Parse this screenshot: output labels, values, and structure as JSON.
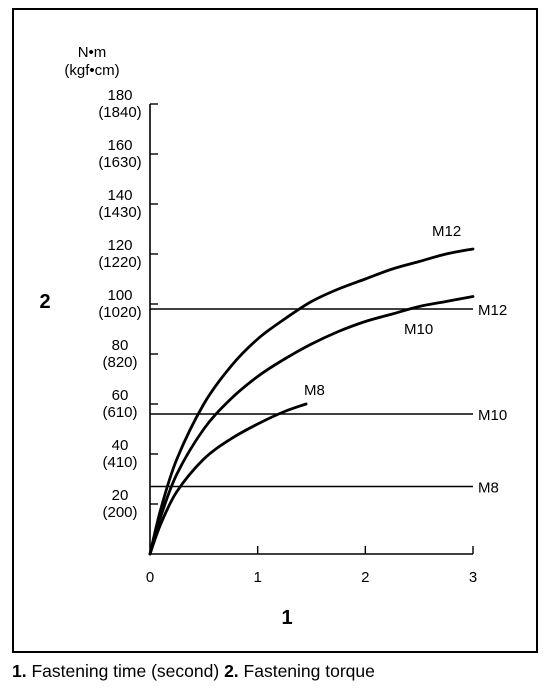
{
  "chart_data": {
    "type": "line",
    "unit_label_top": "N•m",
    "unit_label_bottom": "(kgf•cm)",
    "x_axis_marker": "1",
    "y_axis_marker": "2",
    "xlim": [
      0,
      3
    ],
    "ylim": [
      0,
      180
    ],
    "x_ticks": [
      "0",
      "1",
      "2",
      "3"
    ],
    "y_ticks": [
      {
        "value": 20,
        "nm": "20",
        "kgf": "(200)"
      },
      {
        "value": 40,
        "nm": "40",
        "kgf": "(410)"
      },
      {
        "value": 60,
        "nm": "60",
        "kgf": "(610)"
      },
      {
        "value": 80,
        "nm": "80",
        "kgf": "(820)"
      },
      {
        "value": 100,
        "nm": "100",
        "kgf": "(1020)"
      },
      {
        "value": 120,
        "nm": "120",
        "kgf": "(1220)"
      },
      {
        "value": 140,
        "nm": "140",
        "kgf": "(1430)"
      },
      {
        "value": 160,
        "nm": "160",
        "kgf": "(1630)"
      },
      {
        "value": 180,
        "nm": "180",
        "kgf": "(1840)"
      }
    ],
    "series": [
      {
        "name": "M12",
        "x": [
          0,
          0.1,
          0.25,
          0.5,
          0.75,
          1,
          1.25,
          1.5,
          1.75,
          2,
          2.25,
          2.5,
          2.75,
          3
        ],
        "y": [
          0,
          18,
          38,
          60,
          75,
          86,
          94,
          101,
          106,
          110,
          114,
          117,
          120,
          122
        ]
      },
      {
        "name": "M10",
        "x": [
          0,
          0.1,
          0.25,
          0.5,
          0.75,
          1,
          1.25,
          1.5,
          1.75,
          2,
          2.25,
          2.5,
          2.75,
          3
        ],
        "y": [
          0,
          15,
          32,
          50,
          62,
          71,
          78,
          84,
          89,
          93,
          96,
          99,
          101,
          103
        ]
      },
      {
        "name": "M8",
        "x": [
          0,
          0.1,
          0.25,
          0.5,
          0.75,
          1,
          1.25,
          1.45
        ],
        "y": [
          0,
          12,
          25,
          38,
          46,
          52,
          57,
          60
        ]
      }
    ],
    "reference_lines": [
      {
        "name": "M12",
        "y": 98
      },
      {
        "name": "M10",
        "y": 56
      },
      {
        "name": "M8",
        "y": 27
      }
    ]
  },
  "caption": {
    "num1": "1.",
    "text1": " Fastening time (second) ",
    "num2": "2.",
    "text2": " Fastening torque"
  }
}
